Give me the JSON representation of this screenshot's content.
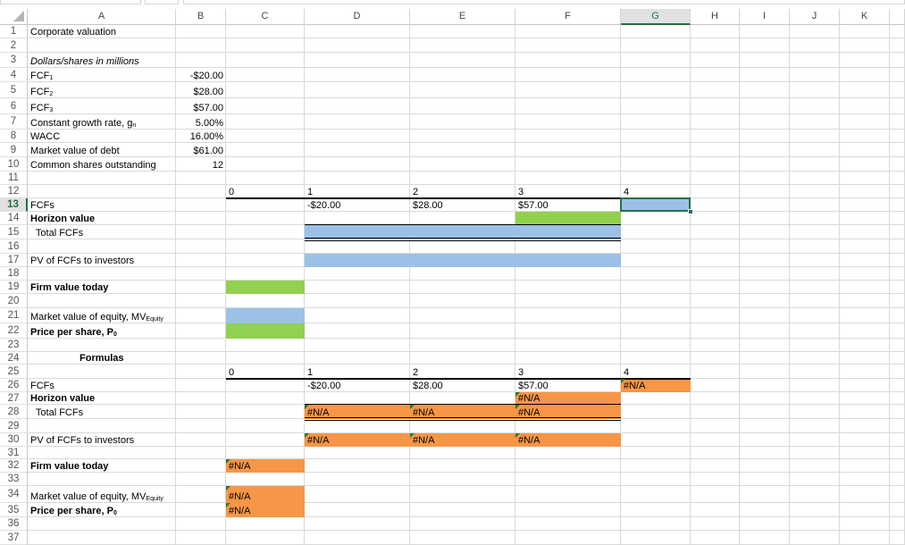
{
  "columns": [
    "A",
    "B",
    "C",
    "D",
    "E",
    "F",
    "G",
    "H",
    "I",
    "J",
    "K"
  ],
  "selected_cell": "G13",
  "colors": {
    "blue": "#9BC2E6",
    "green": "#92D050",
    "orange": "#F79646",
    "selection": "#217346",
    "error_indicator": "#1E7B34"
  },
  "fills": [
    {
      "range": "G13",
      "color": "blue"
    },
    {
      "range": "F14",
      "color": "green"
    },
    {
      "range": "D15:F15",
      "color": "blue"
    },
    {
      "range": "D17:F17",
      "color": "blue"
    },
    {
      "range": "C19",
      "color": "green"
    },
    {
      "range": "C21",
      "color": "blue"
    },
    {
      "range": "C22",
      "color": "green"
    },
    {
      "range": "G26",
      "color": "orange"
    },
    {
      "range": "F27",
      "color": "orange"
    },
    {
      "range": "D28:F28",
      "color": "orange"
    },
    {
      "range": "D30:F30",
      "color": "orange"
    },
    {
      "range": "C32",
      "color": "orange"
    },
    {
      "range": "C34:C35",
      "color": "orange"
    }
  ],
  "cells": [
    {
      "ref": "A1",
      "text": "Corporate valuation"
    },
    {
      "ref": "A3",
      "text": "Dollars/shares in millions",
      "style": "i"
    },
    {
      "ref": "A4",
      "text": "FCF",
      "sub": "1"
    },
    {
      "ref": "B4",
      "text": "-$20.00",
      "style": "r"
    },
    {
      "ref": "A5",
      "text": "FCF",
      "sub": "2"
    },
    {
      "ref": "B5",
      "text": "$28.00",
      "style": "r"
    },
    {
      "ref": "A6",
      "text": "FCF",
      "sub": "3"
    },
    {
      "ref": "B6",
      "text": "$57.00",
      "style": "r"
    },
    {
      "ref": "A7",
      "text": "Constant growth rate, g",
      "sub": "n"
    },
    {
      "ref": "B7",
      "text": "5.00%",
      "style": "r"
    },
    {
      "ref": "A8",
      "text": "WACC"
    },
    {
      "ref": "B8",
      "text": "16.00%",
      "style": "r"
    },
    {
      "ref": "A9",
      "text": "Market value of debt"
    },
    {
      "ref": "B9",
      "text": "$61.00",
      "style": "r"
    },
    {
      "ref": "A10",
      "text": "Common shares outstanding"
    },
    {
      "ref": "B10",
      "text": "12",
      "style": "r"
    },
    {
      "ref": "C12",
      "text": "0"
    },
    {
      "ref": "D12",
      "text": "1"
    },
    {
      "ref": "E12",
      "text": "2"
    },
    {
      "ref": "F12",
      "text": "3"
    },
    {
      "ref": "G12",
      "text": "4"
    },
    {
      "ref": "A13",
      "text": "FCFs"
    },
    {
      "ref": "D13",
      "text": "-$20.00"
    },
    {
      "ref": "E13",
      "text": "$28.00"
    },
    {
      "ref": "F13",
      "text": "$57.00"
    },
    {
      "ref": "A14",
      "text": "Horizon value",
      "style": "b"
    },
    {
      "ref": "A15",
      "text": "  Total FCFs"
    },
    {
      "ref": "A17",
      "text": "PV of FCFs to investors"
    },
    {
      "ref": "A19",
      "text": "Firm value today",
      "style": "b"
    },
    {
      "ref": "A21",
      "text": "Market value of equity, MV",
      "sub": "Equity"
    },
    {
      "ref": "A22",
      "text": "Price per share, P",
      "sub": "0",
      "style": "b"
    },
    {
      "ref": "A24",
      "text": "Formulas",
      "style": "b",
      "indent": true
    },
    {
      "ref": "C25",
      "text": "0"
    },
    {
      "ref": "D25",
      "text": "1"
    },
    {
      "ref": "E25",
      "text": "2"
    },
    {
      "ref": "F25",
      "text": "3"
    },
    {
      "ref": "G25",
      "text": "4"
    },
    {
      "ref": "A26",
      "text": "FCFs"
    },
    {
      "ref": "D26",
      "text": "-$20.00"
    },
    {
      "ref": "E26",
      "text": "$28.00"
    },
    {
      "ref": "F26",
      "text": "$57.00"
    },
    {
      "ref": "G26",
      "text": "#N/A",
      "error": true
    },
    {
      "ref": "A27",
      "text": "Horizon value",
      "style": "b"
    },
    {
      "ref": "F27",
      "text": "#N/A",
      "error": true
    },
    {
      "ref": "A28",
      "text": "  Total FCFs"
    },
    {
      "ref": "D28",
      "text": "#N/A",
      "error": true
    },
    {
      "ref": "E28",
      "text": "#N/A",
      "error": true
    },
    {
      "ref": "F28",
      "text": "#N/A",
      "error": true
    },
    {
      "ref": "A30",
      "text": "PV of FCFs to investors"
    },
    {
      "ref": "D30",
      "text": "#N/A",
      "error": true
    },
    {
      "ref": "E30",
      "text": "#N/A",
      "error": true
    },
    {
      "ref": "F30",
      "text": "#N/A",
      "error": true
    },
    {
      "ref": "A32",
      "text": "Firm value today",
      "style": "b"
    },
    {
      "ref": "C32",
      "text": "#N/A",
      "error": true
    },
    {
      "ref": "A34",
      "text": "Market value of equity, MV",
      "sub": "Equity"
    },
    {
      "ref": "C34",
      "text": "#N/A",
      "error": true
    },
    {
      "ref": "A35",
      "text": "Price per share, P",
      "sub": "0",
      "style": "b"
    },
    {
      "ref": "C35",
      "text": "#N/A",
      "error": true
    }
  ]
}
